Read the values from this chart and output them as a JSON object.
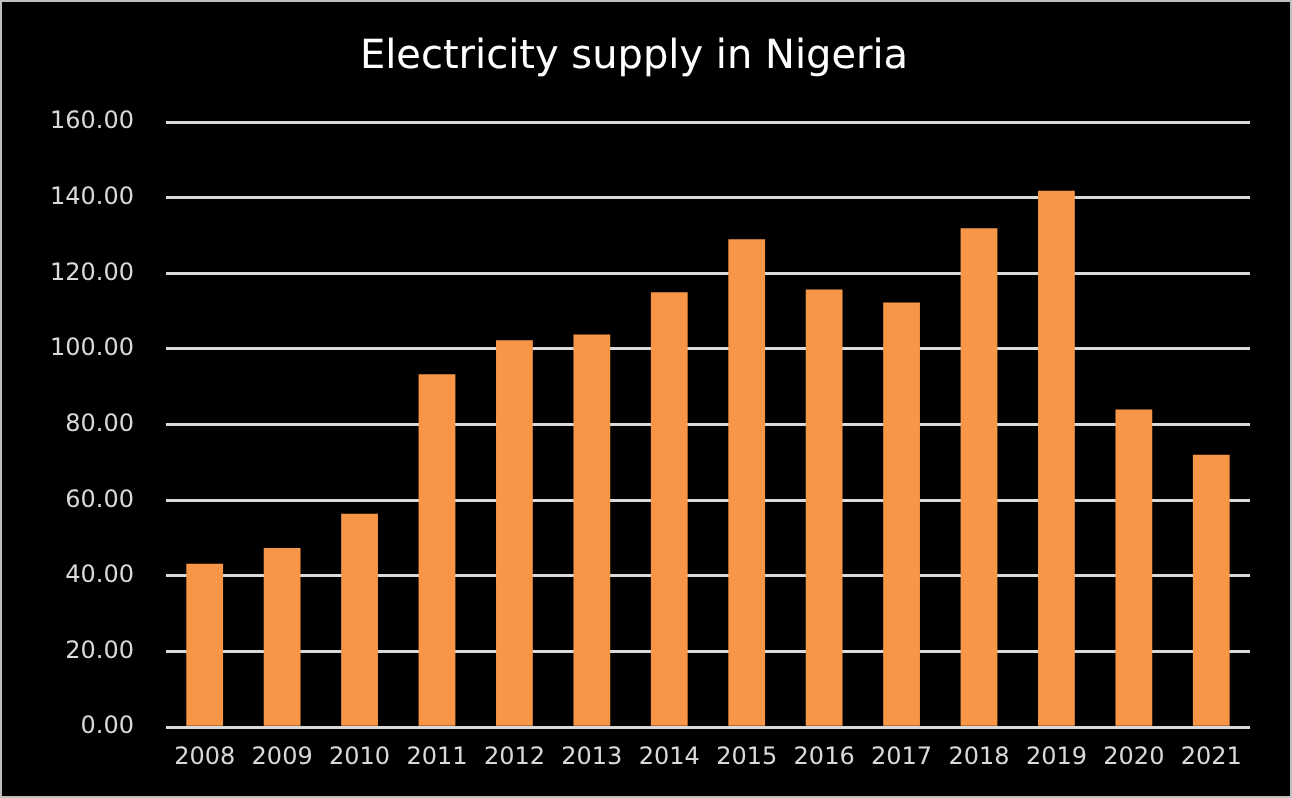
{
  "chart_data": {
    "type": "bar",
    "title": "Electricity supply in Nigeria",
    "categories": [
      "2008",
      "2009",
      "2010",
      "2011",
      "2012",
      "2013",
      "2014",
      "2015",
      "2016",
      "2017",
      "2018",
      "2019",
      "2020",
      "2021"
    ],
    "values": [
      43.2,
      47.4,
      56.4,
      93.3,
      102.3,
      103.8,
      115,
      129,
      115.7,
      112.3,
      131.9,
      141.8,
      84,
      72
    ],
    "color": "#f79646",
    "ylim": [
      0,
      160
    ],
    "yticks": [
      {
        "value": 0,
        "label": "0.00"
      },
      {
        "value": 20,
        "label": "20.00"
      },
      {
        "value": 40,
        "label": "40.00"
      },
      {
        "value": 60,
        "label": "60.00"
      },
      {
        "value": 80,
        "label": "80.00"
      },
      {
        "value": 100,
        "label": "100.00"
      },
      {
        "value": 120,
        "label": "120.00"
      },
      {
        "value": 140,
        "label": "140.00"
      },
      {
        "value": 160,
        "label": "160.00"
      }
    ],
    "grid": "y"
  }
}
